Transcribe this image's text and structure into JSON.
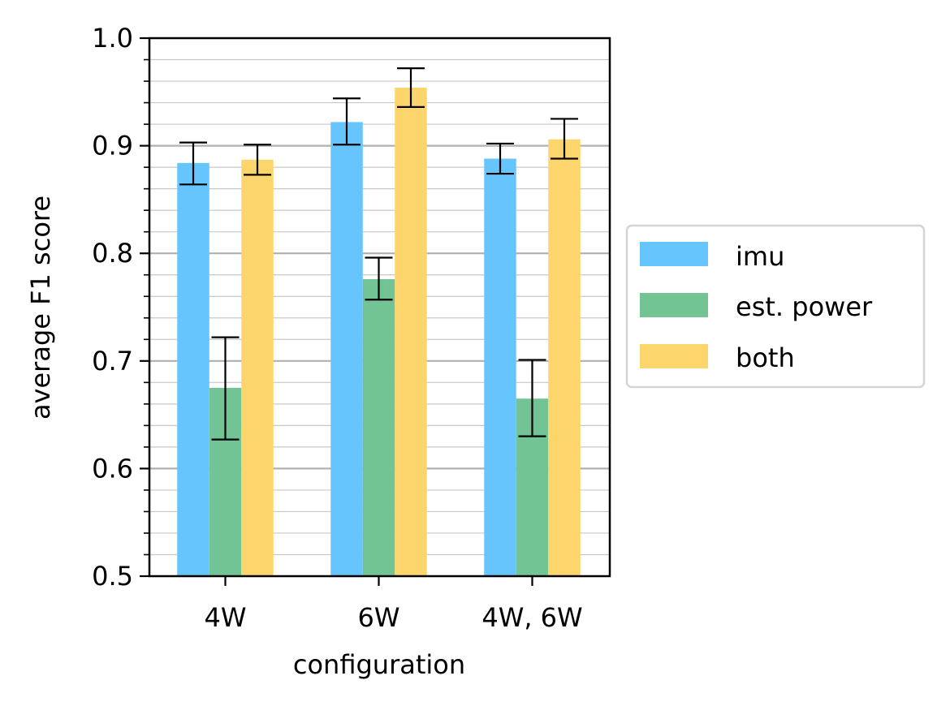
{
  "chart_data": {
    "type": "bar",
    "title": "",
    "xlabel": "configuration",
    "ylabel": "average F1 score",
    "categories": [
      "4W",
      "6W",
      "4W, 6W"
    ],
    "series": [
      {
        "name": "imu",
        "color": "#66c5fc",
        "values": [
          0.884,
          0.922,
          0.888
        ],
        "err_low": [
          0.864,
          0.901,
          0.874
        ],
        "err_high": [
          0.903,
          0.944,
          0.902
        ]
      },
      {
        "name": "est. power",
        "color": "#72c494",
        "values": [
          0.675,
          0.776,
          0.665
        ],
        "err_low": [
          0.627,
          0.757,
          0.63
        ],
        "err_high": [
          0.722,
          0.796,
          0.701
        ]
      },
      {
        "name": "both",
        "color": "#fcd66c",
        "values": [
          0.887,
          0.954,
          0.906
        ],
        "err_low": [
          0.873,
          0.936,
          0.888
        ],
        "err_high": [
          0.901,
          0.972,
          0.925
        ]
      }
    ],
    "ylim": [
      0.5,
      1.0
    ],
    "yticks": [
      "0.5",
      "0.6",
      "0.7",
      "0.8",
      "0.9",
      "1.0"
    ],
    "grid": "major and minor horizontal",
    "legend_position": "right, outside plot"
  }
}
